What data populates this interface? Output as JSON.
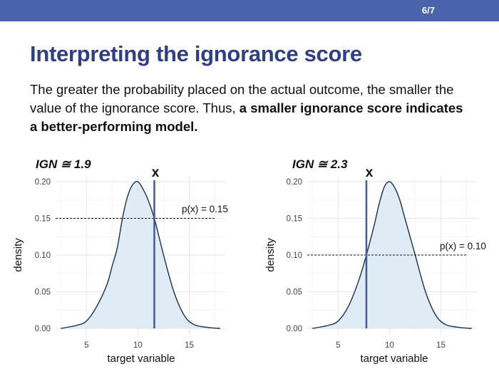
{
  "slide": {
    "page_number": "6/7",
    "title": "Interpreting the ignorance score",
    "body_plain": "The greater the probability placed on the actual outcome, the smaller the value of the ignorance score. Thus, ",
    "body_bold": "a smaller ignorance score indicates a better-performing model."
  },
  "colors": {
    "accent_bar": "#4a63ad",
    "title": "#2f3f86",
    "density_fill": "#dbe9f4",
    "density_line": "#1c2f4c",
    "outcome_line": "#3f5aa6"
  },
  "chart_data": [
    {
      "type": "area",
      "ign_label": "IGN ≅ 1.9",
      "outcome_marker": "x",
      "outcome_x": 11.6,
      "px_label": "p(x) = 0.15",
      "px_value": 0.15,
      "xlabel": "target variable",
      "ylabel": "density",
      "xlim": [
        2,
        18.5
      ],
      "ylim": [
        0,
        0.2
      ],
      "x_ticks": [
        5,
        10,
        15
      ],
      "x_tick_labels": [
        "5",
        "10",
        "15"
      ],
      "y_ticks": [
        0,
        0.05,
        0.1,
        0.15,
        0.2
      ],
      "y_tick_labels": [
        "0.00",
        "0.05",
        "0.10",
        "0.15",
        "0.20"
      ],
      "grid": true,
      "x": [
        2.5,
        4.0,
        5.0,
        6.0,
        7.0,
        7.5,
        8.0,
        8.5,
        9.0,
        9.5,
        10.0,
        10.5,
        11.0,
        11.6,
        12.5,
        13.5,
        14.5,
        15.5,
        17.0,
        18.0
      ],
      "y": [
        0.0,
        0.004,
        0.01,
        0.03,
        0.06,
        0.085,
        0.11,
        0.15,
        0.18,
        0.196,
        0.2,
        0.19,
        0.175,
        0.15,
        0.1,
        0.05,
        0.018,
        0.005,
        0.001,
        0.0
      ]
    },
    {
      "type": "area",
      "ign_label": "IGN ≅ 2.3",
      "outcome_marker": "x",
      "outcome_x": 7.75,
      "px_label": "p(x) = 0.10",
      "px_value": 0.1,
      "xlabel": "target variable",
      "ylabel": "density",
      "xlim": [
        2,
        18.5
      ],
      "ylim": [
        0,
        0.2
      ],
      "x_ticks": [
        5,
        10,
        15
      ],
      "x_tick_labels": [
        "5",
        "10",
        "15"
      ],
      "y_ticks": [
        0,
        0.05,
        0.1,
        0.15,
        0.2
      ],
      "y_tick_labels": [
        "0.00",
        "0.05",
        "0.10",
        "0.15",
        "0.20"
      ],
      "grid": true,
      "x": [
        2.5,
        4.0,
        5.0,
        6.0,
        7.0,
        7.75,
        8.5,
        9.0,
        9.5,
        10.0,
        10.5,
        11.0,
        11.5,
        12.0,
        12.5,
        13.5,
        14.5,
        15.5,
        17.0,
        18.0
      ],
      "y": [
        0.0,
        0.004,
        0.01,
        0.03,
        0.065,
        0.1,
        0.14,
        0.17,
        0.193,
        0.2,
        0.192,
        0.175,
        0.15,
        0.125,
        0.1,
        0.05,
        0.018,
        0.005,
        0.001,
        0.0
      ]
    }
  ]
}
